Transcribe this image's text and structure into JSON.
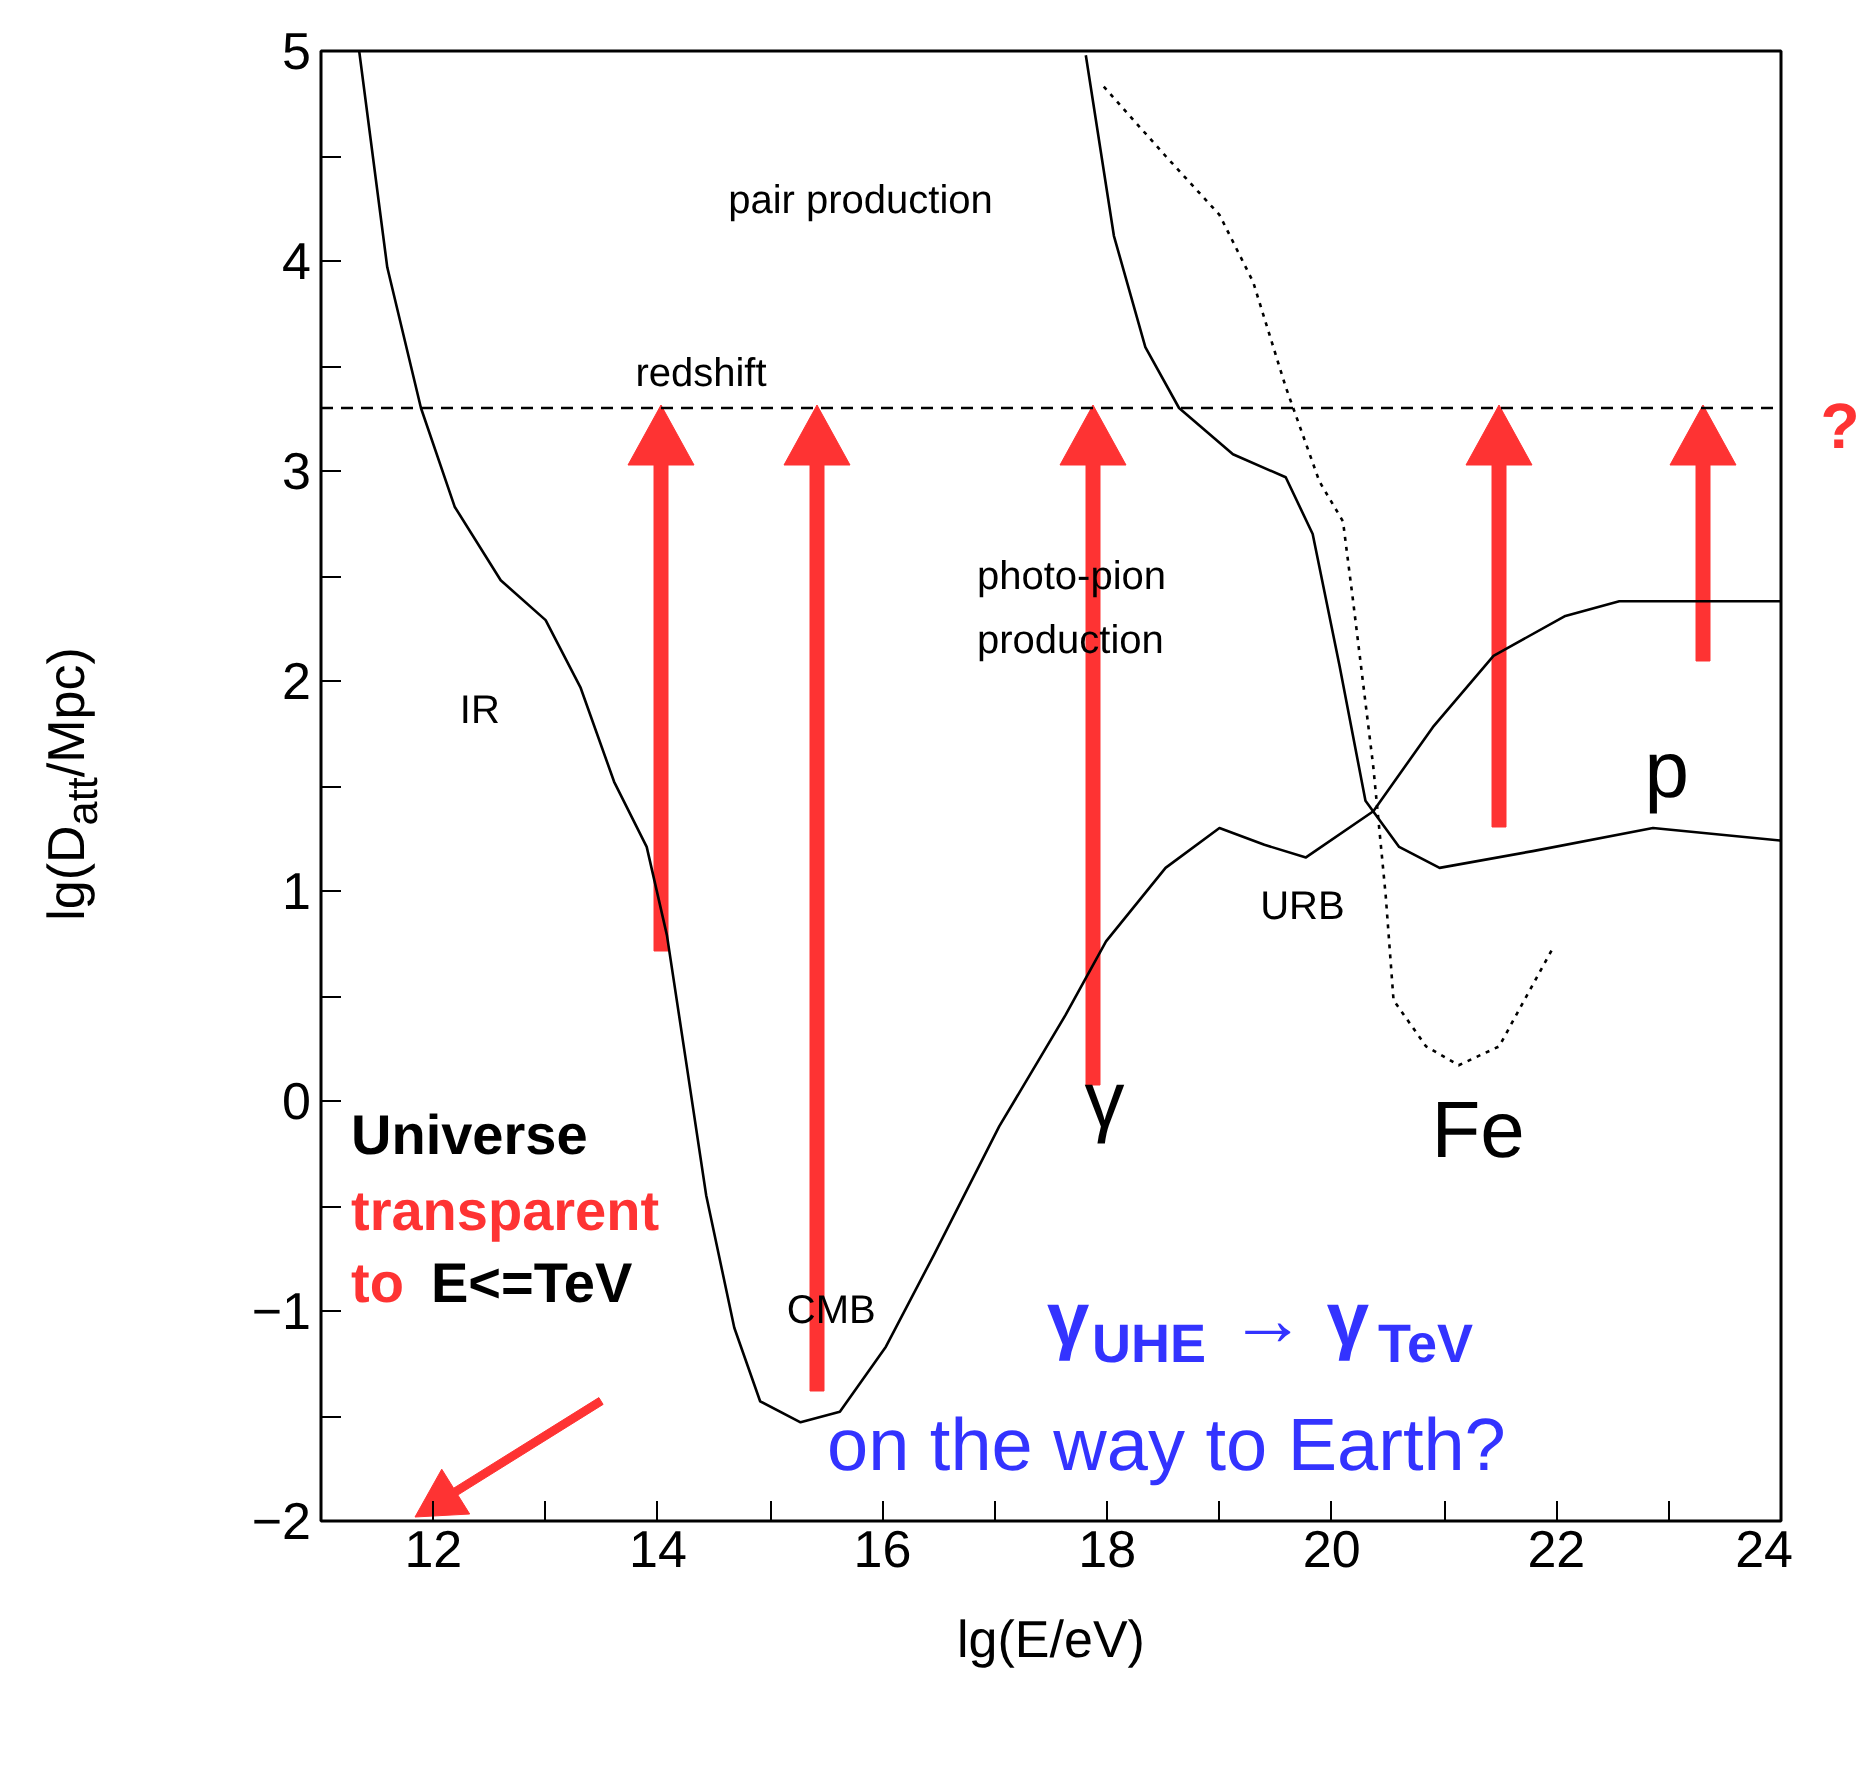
{
  "chart_data": {
    "type": "line",
    "xlabel": "lg(E/eV)",
    "ylabel": "lg(D$_{att}$/Mpc)",
    "xlim": [
      11,
      24
    ],
    "ylim": [
      -2,
      5
    ],
    "xticks": [
      {
        "value": 11,
        "label": null
      },
      12,
      {
        "value": 13,
        "label": null
      },
      14,
      {
        "value": 15,
        "label": null
      },
      16,
      {
        "value": 17,
        "label": null
      },
      18,
      {
        "value": 19,
        "label": null
      },
      20,
      {
        "value": 21,
        "label": null
      },
      22,
      {
        "value": 23,
        "label": null
      },
      24
    ],
    "yticks": [
      -2,
      {
        "value": -1.5,
        "label": null
      },
      -1,
      {
        "value": -0.5,
        "label": null
      },
      0,
      {
        "value": 0.5,
        "label": null
      },
      1,
      {
        "value": 1.5,
        "label": null
      },
      2,
      {
        "value": 2.5,
        "label": null
      },
      3,
      {
        "value": 3.5,
        "label": null
      },
      4,
      {
        "value": 4.5,
        "label": null
      },
      5
    ],
    "grid": false,
    "series": [
      {
        "color": "#000000",
        "line_style": "solid",
        "x": [
          11.34,
          11.59,
          11.89,
          12.19,
          12.6,
          13.0,
          13.31,
          13.61,
          13.9,
          14.08,
          14.25,
          14.43,
          14.68,
          14.91,
          15.27,
          15.62,
          16.03,
          16.46,
          17.04,
          17.63,
          17.99,
          18.52,
          19.0,
          19.4,
          19.77,
          20.37,
          20.9,
          21.44,
          22.08,
          22.56,
          24
        ],
        "values": [
          5,
          3.97,
          3.3,
          2.83,
          2.48,
          2.29,
          1.97,
          1.52,
          1.21,
          0.79,
          0.19,
          -0.45,
          -1.08,
          -1.43,
          -1.53,
          -1.48,
          -1.17,
          -0.73,
          -0.12,
          0.41,
          0.76,
          1.11,
          1.3,
          1.22,
          1.16,
          1.38,
          1.78,
          2.12,
          2.31,
          2.38,
          2.38
        ]
      },
      {
        "color": "#000000",
        "line_style": "solid",
        "x": [
          17.81,
          18.06,
          18.34,
          18.64,
          19.12,
          19.59,
          19.83,
          20.07,
          20.3,
          20.6,
          20.96,
          21.79,
          22.86,
          24
        ],
        "values": [
          4.98,
          4.12,
          3.59,
          3.3,
          3.08,
          2.97,
          2.7,
          2.07,
          1.43,
          1.21,
          1.11,
          1.19,
          1.3,
          1.24
        ]
      },
      {
        "color": "#000000",
        "line_style": "dotted",
        "x": [
          17.97,
          18.52,
          19.0,
          19.3,
          19.59,
          19.89,
          20.1,
          20.19,
          20.37,
          20.48,
          20.55,
          20.84,
          21.13,
          21.49,
          21.97
        ],
        "values": [
          4.83,
          4.5,
          4.22,
          3.9,
          3.4,
          2.95,
          2.76,
          2.38,
          1.59,
          0.98,
          0.48,
          0.26,
          0.17,
          0.26,
          0.73
        ]
      }
    ],
    "ref_lines": [
      {
        "axis": "y",
        "value": 3.3,
        "label": "redshift",
        "color": "#000000",
        "line_style": "dashed"
      }
    ],
    "annotations": [
      "pair production",
      "photo-pion\nproduction",
      "IR",
      "CMB",
      "URB",
      "γ",
      "Fe",
      "p",
      "Universe",
      "transparent",
      "to",
      "E<=TeV",
      "γ$_{UHE}$ → γ$_{TeV}$",
      "on the way to Earth?",
      "?"
    ]
  }
}
